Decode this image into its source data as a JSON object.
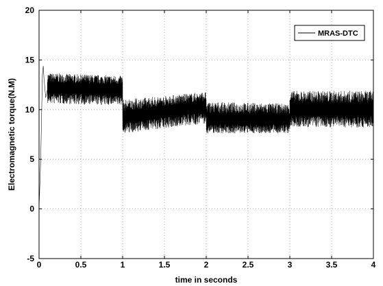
{
  "chart_data": {
    "type": "line",
    "xlabel": "time in seconds",
    "ylabel": "Electromagnetic torque(N.M)",
    "xlim": [
      0,
      4
    ],
    "ylim": [
      -5,
      20
    ],
    "xticks": [
      "0",
      "0.5",
      "1",
      "1.5",
      "2",
      "2.5",
      "3",
      "3.5",
      "4"
    ],
    "yticks": [
      "-5",
      "0",
      "5",
      "10",
      "15",
      "20"
    ],
    "grid": true,
    "legend_position": "top-right",
    "series": [
      {
        "name": "MRAS-DTC",
        "color": "#000000",
        "startup": {
          "x": [
            0,
            0.02,
            0.04,
            0.05,
            0.06,
            0.08,
            0.1
          ],
          "y": [
            0,
            5,
            13.5,
            14.4,
            13,
            11.2,
            12
          ]
        },
        "segments": [
          {
            "t_start": 0.05,
            "t_end": 1.0,
            "mean_start": 12.3,
            "mean_end": 12.0,
            "band_start": [
              10.6,
              13.7
            ],
            "band_end": [
              10.4,
              13.4
            ]
          },
          {
            "t_start": 1.0,
            "t_end": 2.0,
            "mean_start": 9.2,
            "mean_end": 10.4,
            "band_start": [
              7.6,
              11.0
            ],
            "band_end": [
              8.6,
              11.8
            ]
          },
          {
            "t_start": 2.0,
            "t_end": 3.0,
            "mean_start": 9.0,
            "mean_end": 9.0,
            "band_start": [
              7.6,
              10.8
            ],
            "band_end": [
              7.6,
              10.6
            ]
          },
          {
            "t_start": 3.0,
            "t_end": 4.0,
            "mean_start": 10.0,
            "mean_end": 10.0,
            "band_start": [
              8.2,
              11.9
            ],
            "band_end": [
              8.2,
              11.9
            ]
          }
        ]
      }
    ]
  }
}
